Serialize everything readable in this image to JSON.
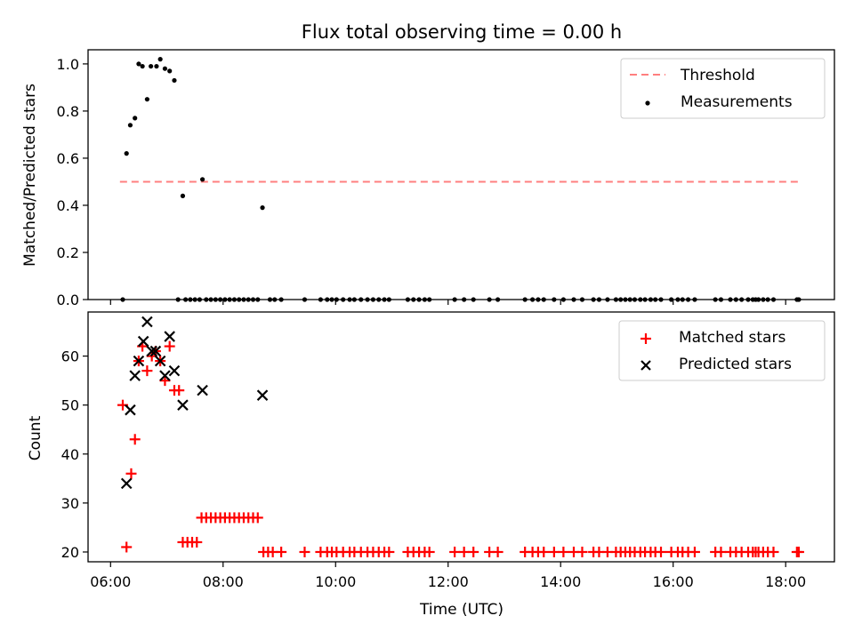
{
  "chart_data": [
    {
      "type": "scatter",
      "title": "Flux total observing time = 0.00 h",
      "xlabel": "",
      "ylabel": "Matched/Predicted stars",
      "xlim": [
        "05:36",
        "18:52"
      ],
      "ylim": [
        0.0,
        1.06
      ],
      "yticks": [
        0.0,
        0.2,
        0.4,
        0.6,
        0.8,
        1.0
      ],
      "ytick_labels": [
        "0.0",
        "0.2",
        "0.4",
        "0.6",
        "0.8",
        "1.0"
      ],
      "legend": [
        "Threshold",
        "Measurements"
      ],
      "legend_position": "top-right",
      "threshold": {
        "name": "Threshold",
        "value": 0.5,
        "x_start": "06:10",
        "x_end": "18:15",
        "color": "#ff7f7f",
        "style": "dashed"
      },
      "series": [
        {
          "name": "Measurements",
          "color": "#000000",
          "points": [
            [
              "06:13",
              0.0
            ],
            [
              "06:17",
              0.62
            ],
            [
              "06:21",
              0.74
            ],
            [
              "06:26",
              0.77
            ],
            [
              "06:30",
              1.0
            ],
            [
              "06:34",
              0.99
            ],
            [
              "06:39",
              0.85
            ],
            [
              "06:43",
              0.99
            ],
            [
              "06:49",
              0.99
            ],
            [
              "06:53",
              1.02
            ],
            [
              "06:58",
              0.98
            ],
            [
              "07:03",
              0.97
            ],
            [
              "07:08",
              0.93
            ],
            [
              "07:17",
              0.44
            ],
            [
              "07:38",
              0.51
            ],
            [
              "08:42",
              0.39
            ],
            [
              "07:12",
              0.0
            ],
            [
              "07:20",
              0.0
            ],
            [
              "07:25",
              0.0
            ],
            [
              "07:30",
              0.0
            ],
            [
              "07:35",
              0.0
            ],
            [
              "07:42",
              0.0
            ],
            [
              "07:47",
              0.0
            ],
            [
              "07:52",
              0.0
            ],
            [
              "07:57",
              0.0
            ],
            [
              "08:02",
              0.0
            ],
            [
              "08:07",
              0.0
            ],
            [
              "08:12",
              0.0
            ],
            [
              "08:17",
              0.0
            ],
            [
              "08:22",
              0.0
            ],
            [
              "08:27",
              0.0
            ],
            [
              "08:32",
              0.0
            ],
            [
              "08:37",
              0.0
            ],
            [
              "08:50",
              0.0
            ],
            [
              "08:55",
              0.0
            ],
            [
              "09:02",
              0.0
            ],
            [
              "09:27",
              0.0
            ],
            [
              "09:44",
              0.0
            ],
            [
              "09:51",
              0.0
            ],
            [
              "09:56",
              0.0
            ],
            [
              "10:01",
              0.0
            ],
            [
              "10:08",
              0.0
            ],
            [
              "10:15",
              0.0
            ],
            [
              "10:20",
              0.0
            ],
            [
              "10:27",
              0.0
            ],
            [
              "10:34",
              0.0
            ],
            [
              "10:40",
              0.0
            ],
            [
              "10:46",
              0.0
            ],
            [
              "10:52",
              0.0
            ],
            [
              "10:57",
              0.0
            ],
            [
              "11:17",
              0.0
            ],
            [
              "11:23",
              0.0
            ],
            [
              "11:29",
              0.0
            ],
            [
              "11:35",
              0.0
            ],
            [
              "11:40",
              0.0
            ],
            [
              "12:07",
              0.0
            ],
            [
              "12:17",
              0.0
            ],
            [
              "12:27",
              0.0
            ],
            [
              "12:44",
              0.0
            ],
            [
              "12:53",
              0.0
            ],
            [
              "13:22",
              0.0
            ],
            [
              "13:30",
              0.0
            ],
            [
              "13:36",
              0.0
            ],
            [
              "13:42",
              0.0
            ],
            [
              "13:53",
              0.0
            ],
            [
              "14:03",
              0.0
            ],
            [
              "14:14",
              0.0
            ],
            [
              "14:23",
              0.0
            ],
            [
              "14:35",
              0.0
            ],
            [
              "14:41",
              0.0
            ],
            [
              "14:50",
              0.0
            ],
            [
              "14:59",
              0.0
            ],
            [
              "15:04",
              0.0
            ],
            [
              "15:09",
              0.0
            ],
            [
              "15:14",
              0.0
            ],
            [
              "15:19",
              0.0
            ],
            [
              "15:25",
              0.0
            ],
            [
              "15:30",
              0.0
            ],
            [
              "15:36",
              0.0
            ],
            [
              "15:41",
              0.0
            ],
            [
              "15:47",
              0.0
            ],
            [
              "15:58",
              0.0
            ],
            [
              "16:05",
              0.0
            ],
            [
              "16:10",
              0.0
            ],
            [
              "16:16",
              0.0
            ],
            [
              "16:23",
              0.0
            ],
            [
              "16:45",
              0.0
            ],
            [
              "16:51",
              0.0
            ],
            [
              "17:01",
              0.0
            ],
            [
              "17:07",
              0.0
            ],
            [
              "17:13",
              0.0
            ],
            [
              "17:20",
              0.0
            ],
            [
              "17:25",
              0.0
            ],
            [
              "17:28",
              0.0
            ],
            [
              "17:31",
              0.0
            ],
            [
              "17:36",
              0.0
            ],
            [
              "17:41",
              0.0
            ],
            [
              "17:47",
              0.0
            ],
            [
              "18:12",
              0.0
            ],
            [
              "18:14",
              0.0
            ]
          ]
        }
      ]
    },
    {
      "type": "scatter",
      "title": "",
      "xlabel": "Time (UTC)",
      "ylabel": "Count",
      "xlim": [
        "05:36",
        "18:52"
      ],
      "ylim": [
        18,
        69
      ],
      "xticks": [
        "06:00",
        "08:00",
        "10:00",
        "12:00",
        "14:00",
        "16:00",
        "18:00"
      ],
      "xtick_labels": [
        "06:00",
        "08:00",
        "10:00",
        "12:00",
        "14:00",
        "16:00",
        "18:00"
      ],
      "yticks": [
        20,
        30,
        40,
        50,
        60
      ],
      "ytick_labels": [
        "20",
        "30",
        "40",
        "50",
        "60"
      ],
      "legend": [
        "Matched stars",
        "Predicted stars"
      ],
      "legend_position": "top-right",
      "series": [
        {
          "name": "Matched stars",
          "marker": "plus",
          "color": "#ff0000",
          "points": [
            [
              "06:13",
              50
            ],
            [
              "06:17",
              21
            ],
            [
              "06:22",
              36
            ],
            [
              "06:26",
              43
            ],
            [
              "06:30",
              59
            ],
            [
              "06:34",
              62
            ],
            [
              "06:39",
              57
            ],
            [
              "06:44",
              60
            ],
            [
              "06:48",
              61
            ],
            [
              "06:53",
              59
            ],
            [
              "06:58",
              55
            ],
            [
              "07:03",
              62
            ],
            [
              "07:08",
              53
            ],
            [
              "07:13",
              53
            ],
            [
              "07:17",
              22
            ],
            [
              "07:22",
              22
            ],
            [
              "07:27",
              22
            ],
            [
              "07:32",
              22
            ],
            [
              "07:37",
              27
            ],
            [
              "07:42",
              27
            ],
            [
              "07:47",
              27
            ],
            [
              "07:52",
              27
            ],
            [
              "07:57",
              27
            ],
            [
              "08:02",
              27
            ],
            [
              "08:07",
              27
            ],
            [
              "08:12",
              27
            ],
            [
              "08:17",
              27
            ],
            [
              "08:22",
              27
            ],
            [
              "08:27",
              27
            ],
            [
              "08:32",
              27
            ],
            [
              "08:37",
              27
            ],
            [
              "08:43",
              20
            ],
            [
              "08:48",
              20
            ],
            [
              "08:53",
              20
            ],
            [
              "09:02",
              20
            ],
            [
              "09:27",
              20
            ],
            [
              "09:44",
              20
            ],
            [
              "09:51",
              20
            ],
            [
              "09:56",
              20
            ],
            [
              "10:01",
              20
            ],
            [
              "10:08",
              20
            ],
            [
              "10:15",
              20
            ],
            [
              "10:20",
              20
            ],
            [
              "10:27",
              20
            ],
            [
              "10:34",
              20
            ],
            [
              "10:40",
              20
            ],
            [
              "10:46",
              20
            ],
            [
              "10:52",
              20
            ],
            [
              "10:57",
              20
            ],
            [
              "11:17",
              20
            ],
            [
              "11:23",
              20
            ],
            [
              "11:29",
              20
            ],
            [
              "11:35",
              20
            ],
            [
              "11:40",
              20
            ],
            [
              "12:07",
              20
            ],
            [
              "12:17",
              20
            ],
            [
              "12:27",
              20
            ],
            [
              "12:44",
              20
            ],
            [
              "12:53",
              20
            ],
            [
              "13:22",
              20
            ],
            [
              "13:30",
              20
            ],
            [
              "13:36",
              20
            ],
            [
              "13:42",
              20
            ],
            [
              "13:53",
              20
            ],
            [
              "14:03",
              20
            ],
            [
              "14:14",
              20
            ],
            [
              "14:23",
              20
            ],
            [
              "14:35",
              20
            ],
            [
              "14:41",
              20
            ],
            [
              "14:50",
              20
            ],
            [
              "14:59",
              20
            ],
            [
              "15:04",
              20
            ],
            [
              "15:09",
              20
            ],
            [
              "15:14",
              20
            ],
            [
              "15:19",
              20
            ],
            [
              "15:25",
              20
            ],
            [
              "15:30",
              20
            ],
            [
              "15:36",
              20
            ],
            [
              "15:41",
              20
            ],
            [
              "15:47",
              20
            ],
            [
              "15:58",
              20
            ],
            [
              "16:05",
              20
            ],
            [
              "16:10",
              20
            ],
            [
              "16:16",
              20
            ],
            [
              "16:23",
              20
            ],
            [
              "16:45",
              20
            ],
            [
              "16:51",
              20
            ],
            [
              "17:01",
              20
            ],
            [
              "17:07",
              20
            ],
            [
              "17:13",
              20
            ],
            [
              "17:20",
              20
            ],
            [
              "17:25",
              20
            ],
            [
              "17:28",
              20
            ],
            [
              "17:31",
              20
            ],
            [
              "17:36",
              20
            ],
            [
              "17:41",
              20
            ],
            [
              "17:47",
              20
            ],
            [
              "18:12",
              20
            ],
            [
              "18:14",
              20
            ]
          ]
        },
        {
          "name": "Predicted stars",
          "marker": "x",
          "color": "#000000",
          "points": [
            [
              "06:17",
              34
            ],
            [
              "06:21",
              49
            ],
            [
              "06:26",
              56
            ],
            [
              "06:30",
              59
            ],
            [
              "06:35",
              63
            ],
            [
              "06:39",
              67
            ],
            [
              "06:44",
              61
            ],
            [
              "06:48",
              61
            ],
            [
              "06:53",
              59
            ],
            [
              "06:58",
              56
            ],
            [
              "07:03",
              64
            ],
            [
              "07:08",
              57
            ],
            [
              "07:17",
              50
            ],
            [
              "07:38",
              53
            ],
            [
              "08:42",
              52
            ]
          ]
        }
      ]
    }
  ]
}
